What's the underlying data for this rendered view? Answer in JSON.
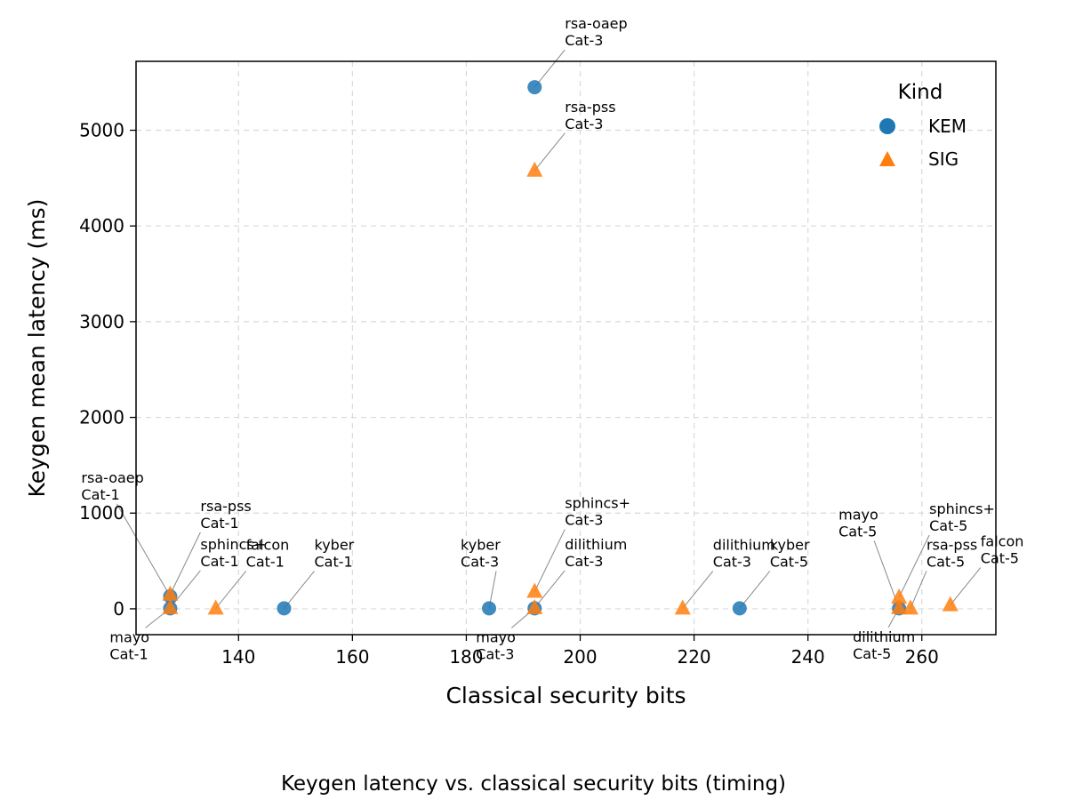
{
  "chart_data": {
    "type": "scatter",
    "title": "",
    "caption": "Keygen latency vs. classical security bits (timing)",
    "xlabel": "Classical security bits",
    "ylabel": "Keygen mean latency (ms)",
    "xlim": [
      122,
      273
    ],
    "ylim": [
      -270,
      5720
    ],
    "x_ticks": [
      140,
      160,
      180,
      200,
      220,
      240,
      260
    ],
    "y_ticks": [
      0,
      1000,
      2000,
      3000,
      4000,
      5000
    ],
    "grid": true,
    "legend": {
      "title": "Kind",
      "position": "top-right"
    },
    "colors": {
      "KEM": "#1f77b4",
      "SIG": "#ff7f0e"
    },
    "series": [
      {
        "name": "KEM",
        "marker": "circle",
        "points": [
          {
            "x": 128,
            "y": 5,
            "label": [
              "mayo",
              "Cat-1"
            ]
          },
          {
            "x": 128,
            "y": 130,
            "label": [
              "rsa-oaep",
              "Cat-1"
            ]
          },
          {
            "x": 148,
            "y": 5,
            "label": [
              "kyber",
              "Cat-1"
            ]
          },
          {
            "x": 184,
            "y": 5,
            "label": [
              "kyber",
              "Cat-3"
            ]
          },
          {
            "x": 192,
            "y": 5,
            "label": [
              "mayo",
              "Cat-3"
            ]
          },
          {
            "x": 192,
            "y": 5450,
            "label": [
              "rsa-oaep",
              "Cat-3"
            ]
          },
          {
            "x": 228,
            "y": 5,
            "label": [
              "kyber",
              "Cat-5"
            ]
          },
          {
            "x": 256,
            "y": 5,
            "label": [
              "mayo",
              "Cat-5"
            ]
          }
        ]
      },
      {
        "name": "SIG",
        "marker": "triangle",
        "points": [
          {
            "x": 128,
            "y": 10,
            "label": [
              "sphincs+",
              "Cat-1"
            ]
          },
          {
            "x": 128,
            "y": 150,
            "label": [
              "rsa-pss",
              "Cat-1"
            ]
          },
          {
            "x": 136,
            "y": 5,
            "label": [
              "falcon",
              "Cat-1"
            ]
          },
          {
            "x": 192,
            "y": 10,
            "label": [
              "dilithium",
              "Cat-3"
            ]
          },
          {
            "x": 192,
            "y": 180,
            "label": [
              "sphincs+",
              "Cat-3"
            ]
          },
          {
            "x": 192,
            "y": 4580,
            "label": [
              "rsa-pss",
              "Cat-3"
            ]
          },
          {
            "x": 218,
            "y": 5,
            "label": [
              "dilithium",
              "Cat-3"
            ]
          },
          {
            "x": 256,
            "y": 10,
            "label": [
              "dilithium",
              "Cat-5"
            ]
          },
          {
            "x": 256,
            "y": 120,
            "label": [
              "sphincs+",
              "Cat-5"
            ]
          },
          {
            "x": 258,
            "y": 5,
            "label": [
              "rsa-pss",
              "Cat-5"
            ]
          },
          {
            "x": 265,
            "y": 40,
            "label": [
              "falcon",
              "Cat-5"
            ]
          }
        ]
      }
    ]
  }
}
